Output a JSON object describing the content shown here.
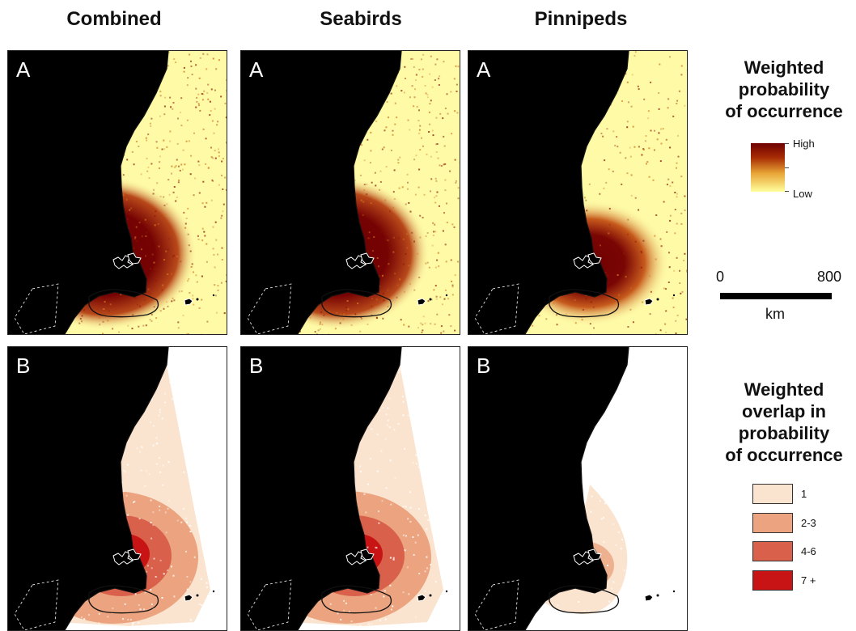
{
  "columns": [
    {
      "title": "Combined"
    },
    {
      "title": "Seabirds"
    },
    {
      "title": "Pinnipeds"
    }
  ],
  "row_labels": [
    "A",
    "B"
  ],
  "legend_probability": {
    "title_lines": [
      "Weighted",
      "probability",
      "of occurrence"
    ],
    "high_label": "High",
    "low_label": "Low",
    "colors": [
      "#6e0000",
      "#a82d05",
      "#e8a436",
      "#ffff9c"
    ]
  },
  "scale": {
    "start": "0",
    "end": "800",
    "unit": "km"
  },
  "legend_overlap": {
    "title_lines": [
      "Weighted",
      "overlap in",
      "probability",
      "of occurrence"
    ],
    "classes": [
      {
        "label": "1",
        "color": "#fbe4cf"
      },
      {
        "label": "2-3",
        "color": "#eba47f"
      },
      {
        "label": "4-6",
        "color": "#d9604a"
      },
      {
        "label": "7 +",
        "color": "#c81414"
      }
    ]
  },
  "colors": {
    "land": "#000000",
    "ocean_low": "#fefaa6",
    "ocean_high": "#6e0000",
    "coastline": "#111111"
  }
}
